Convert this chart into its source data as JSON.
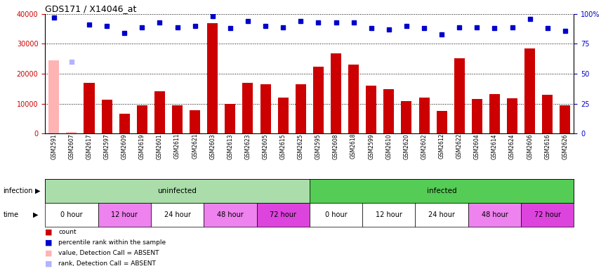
{
  "title": "GDS171 / X14046_at",
  "samples": [
    "GSM2591",
    "GSM2607",
    "GSM2617",
    "GSM2597",
    "GSM2609",
    "GSM2619",
    "GSM2601",
    "GSM2611",
    "GSM2621",
    "GSM2603",
    "GSM2613",
    "GSM2623",
    "GSM2605",
    "GSM2615",
    "GSM2625",
    "GSM2595",
    "GSM2608",
    "GSM2618",
    "GSM2599",
    "GSM2610",
    "GSM2620",
    "GSM2602",
    "GSM2612",
    "GSM2622",
    "GSM2604",
    "GSM2614",
    "GSM2624",
    "GSM2606",
    "GSM2616",
    "GSM2626"
  ],
  "bar_values": [
    24500,
    500,
    17000,
    11200,
    6700,
    9300,
    14000,
    9500,
    7700,
    37000,
    9800,
    17000,
    16500,
    11900,
    16400,
    22300,
    26700,
    23000,
    15900,
    14800,
    10800,
    11900,
    7500,
    25200,
    11500,
    13200,
    11700,
    28500,
    13000,
    9300
  ],
  "absent_bar": [
    1,
    1,
    0,
    0,
    0,
    0,
    0,
    0,
    0,
    0,
    0,
    0,
    0,
    0,
    0,
    0,
    0,
    0,
    0,
    0,
    0,
    0,
    0,
    0,
    0,
    0,
    0,
    0,
    0,
    0
  ],
  "rank_values": [
    97,
    60,
    91,
    90,
    84,
    89,
    93,
    89,
    90,
    98,
    88,
    94,
    90,
    89,
    94,
    93,
    93,
    93,
    88,
    87,
    90,
    88,
    83,
    89,
    89,
    88,
    89,
    96,
    88,
    86
  ],
  "absent_rank": [
    0,
    1,
    0,
    0,
    0,
    0,
    0,
    0,
    0,
    0,
    0,
    0,
    0,
    0,
    0,
    0,
    0,
    0,
    0,
    0,
    0,
    0,
    0,
    0,
    0,
    0,
    0,
    0,
    0,
    0
  ],
  "bar_color": "#cc0000",
  "bar_absent_color": "#ffb3b3",
  "rank_color": "#0000cc",
  "rank_absent_color": "#b3b3ff",
  "ylim_left": [
    0,
    40000
  ],
  "ylim_right": [
    0,
    100
  ],
  "yticks_left": [
    0,
    10000,
    20000,
    30000,
    40000
  ],
  "yticks_right": [
    0,
    25,
    50,
    75,
    100
  ],
  "yticklabels_right": [
    "0",
    "25",
    "50",
    "75",
    "100%"
  ],
  "infection_groups": [
    {
      "label": "uninfected",
      "start": 0,
      "end": 14,
      "color": "#aaddaa"
    },
    {
      "label": "infected",
      "start": 15,
      "end": 29,
      "color": "#55cc55"
    }
  ],
  "time_groups": [
    {
      "label": "0 hour",
      "start": 0,
      "end": 2,
      "color": "#ffffff"
    },
    {
      "label": "12 hour",
      "start": 3,
      "end": 5,
      "color": "#ee82ee"
    },
    {
      "label": "24 hour",
      "start": 6,
      "end": 8,
      "color": "#ffffff"
    },
    {
      "label": "48 hour",
      "start": 9,
      "end": 11,
      "color": "#ee82ee"
    },
    {
      "label": "72 hour",
      "start": 12,
      "end": 14,
      "color": "#dd44dd"
    },
    {
      "label": "0 hour",
      "start": 15,
      "end": 17,
      "color": "#ffffff"
    },
    {
      "label": "12 hour",
      "start": 18,
      "end": 20,
      "color": "#ffffff"
    },
    {
      "label": "24 hour",
      "start": 21,
      "end": 23,
      "color": "#ffffff"
    },
    {
      "label": "48 hour",
      "start": 24,
      "end": 26,
      "color": "#ee82ee"
    },
    {
      "label": "72 hour",
      "start": 27,
      "end": 29,
      "color": "#dd44dd"
    }
  ],
  "legend_items": [
    {
      "label": "count",
      "color": "#cc0000"
    },
    {
      "label": "percentile rank within the sample",
      "color": "#0000cc"
    },
    {
      "label": "value, Detection Call = ABSENT",
      "color": "#ffb3b3"
    },
    {
      "label": "rank, Detection Call = ABSENT",
      "color": "#b3b3ff"
    }
  ],
  "bg_color": "#ffffff",
  "plot_bg_color": "#ffffff"
}
